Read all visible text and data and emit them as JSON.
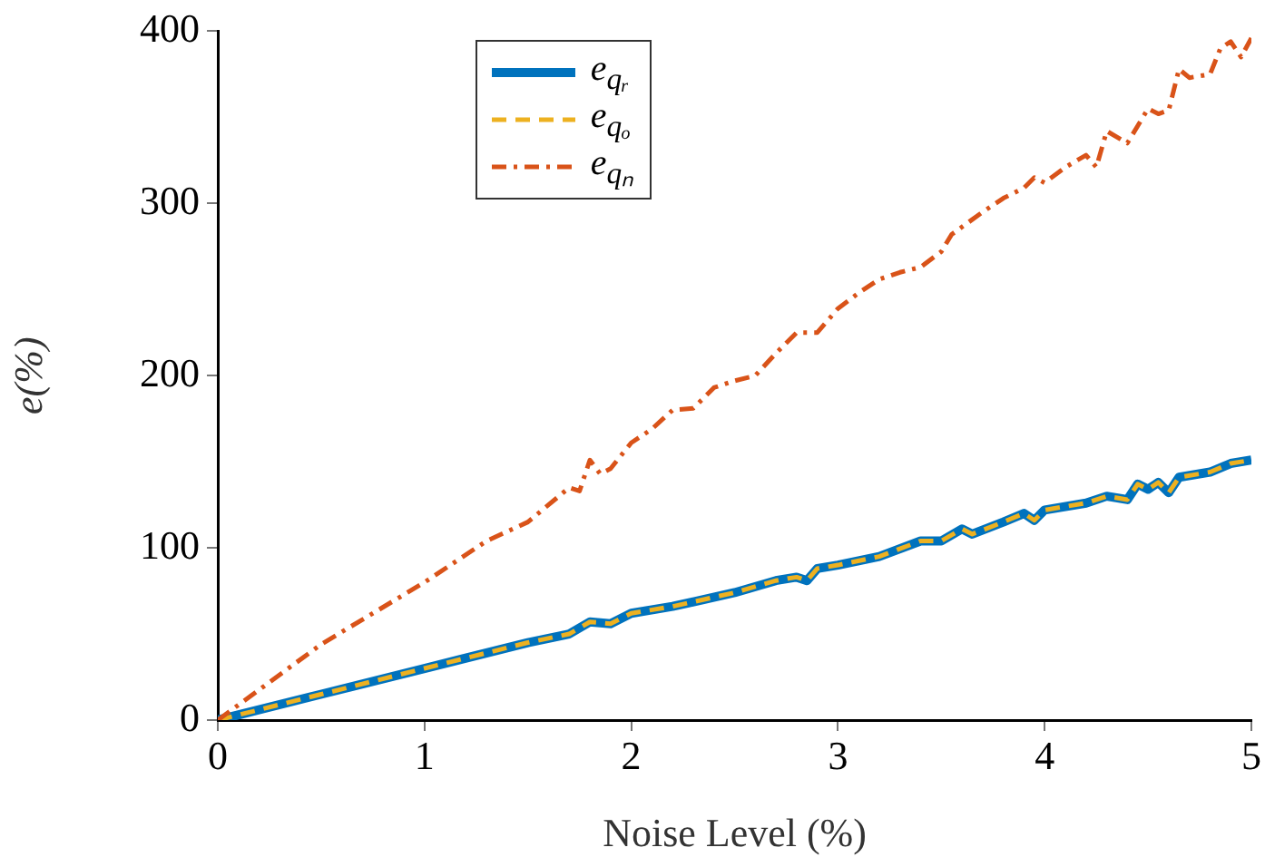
{
  "chart_data": {
    "type": "line",
    "xlabel": "Noise Level (%)",
    "ylabel": "e(%)",
    "xlim": [
      0,
      5
    ],
    "xticks": [
      0,
      1,
      2,
      3,
      4,
      5
    ],
    "ylim": [
      0,
      400
    ],
    "yticks": [
      0,
      100,
      200,
      300,
      400
    ],
    "grid": false,
    "legend": "top left",
    "marker": "none",
    "series": [
      {
        "name": "e$_{qᵣ}$",
        "color": "#0072bd",
        "line_style": "solid",
        "x": [
          0,
          0.5,
          1,
          1.5,
          1.7,
          1.8,
          1.9,
          2,
          2.2,
          2.5,
          2.7,
          2.8,
          2.85,
          2.9,
          3,
          3.2,
          3.4,
          3.5,
          3.6,
          3.65,
          3.8,
          3.9,
          3.95,
          4,
          4.2,
          4.3,
          4.4,
          4.45,
          4.5,
          4.55,
          4.6,
          4.65,
          4.8,
          4.9,
          5
        ],
        "values": [
          0,
          15,
          30,
          45,
          50,
          57,
          56,
          62,
          66,
          74,
          81,
          83,
          81,
          88,
          90,
          95,
          104,
          104,
          111,
          108,
          115,
          120,
          116,
          122,
          126,
          130,
          128,
          137,
          134,
          138,
          132,
          141,
          144,
          149,
          151
        ]
      },
      {
        "name": "e$_{qₒ}$",
        "color": "#edb120",
        "line_style": "dashed",
        "x": [
          0,
          0.5,
          1,
          1.5,
          1.7,
          1.8,
          1.9,
          2,
          2.2,
          2.5,
          2.7,
          2.8,
          2.85,
          2.9,
          3,
          3.2,
          3.4,
          3.5,
          3.6,
          3.65,
          3.8,
          3.9,
          3.95,
          4,
          4.2,
          4.3,
          4.4,
          4.45,
          4.5,
          4.55,
          4.6,
          4.65,
          4.8,
          4.9,
          5
        ],
        "values": [
          0,
          15,
          30,
          45,
          50,
          57,
          56,
          62,
          66,
          74,
          81,
          83,
          81,
          88,
          90,
          95,
          104,
          104,
          111,
          108,
          115,
          120,
          116,
          122,
          126,
          130,
          128,
          137,
          134,
          138,
          132,
          141,
          144,
          149,
          151
        ]
      },
      {
        "name": "e$_{qₙ}$",
        "color": "#d95319",
        "line_style": "dashdot",
        "x": [
          0,
          0.5,
          1,
          1.3,
          1.5,
          1.7,
          1.75,
          1.8,
          1.85,
          1.9,
          2,
          2.1,
          2.2,
          2.3,
          2.4,
          2.5,
          2.6,
          2.7,
          2.8,
          2.9,
          3,
          3.1,
          3.2,
          3.3,
          3.4,
          3.5,
          3.55,
          3.7,
          3.8,
          3.9,
          3.95,
          4,
          4.1,
          4.2,
          4.25,
          4.3,
          4.4,
          4.5,
          4.55,
          4.6,
          4.65,
          4.7,
          4.8,
          4.85,
          4.9,
          4.95,
          5
        ],
        "values": [
          0,
          44,
          80,
          104,
          115,
          135,
          133,
          151,
          143,
          146,
          161,
          169,
          180,
          181,
          193,
          197,
          200,
          213,
          225,
          225,
          239,
          248,
          256,
          260,
          263,
          272,
          282,
          295,
          303,
          309,
          315,
          312,
          321,
          328,
          321,
          342,
          335,
          355,
          352,
          354,
          378,
          373,
          375,
          390,
          394,
          385,
          396
        ]
      }
    ]
  }
}
